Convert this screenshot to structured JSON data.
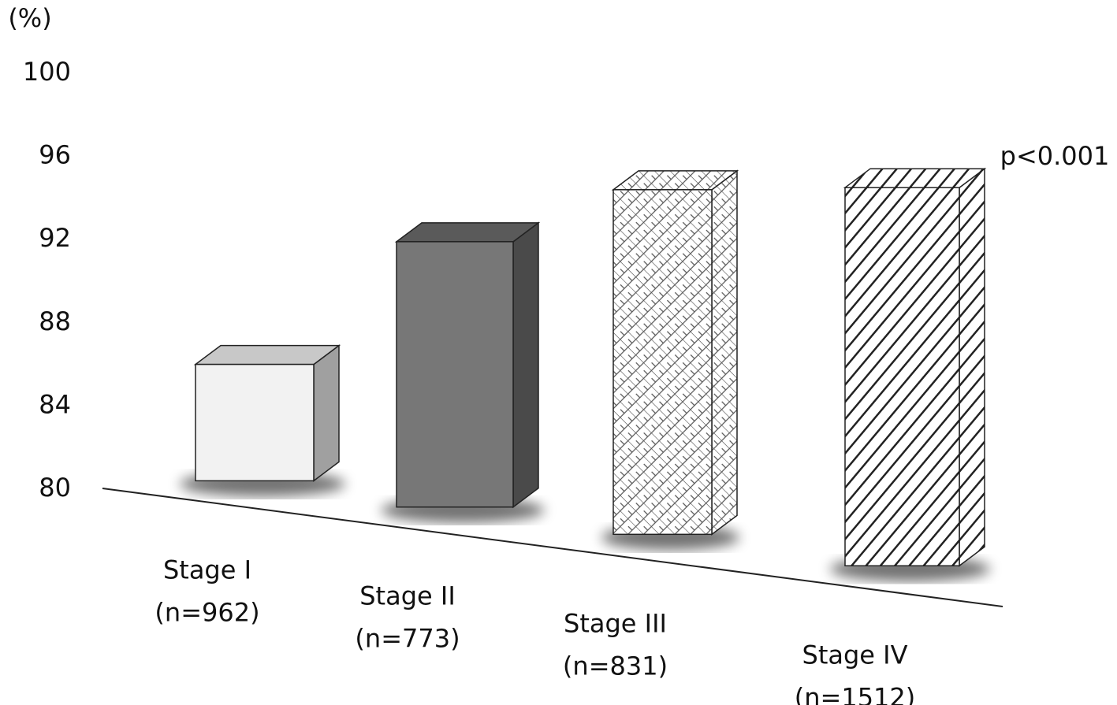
{
  "chart_data": {
    "type": "bar3d",
    "y_unit": "(%)",
    "annotation": "p<0.001",
    "categories": [
      "Stage I",
      "Stage II",
      "Stage III",
      "Stage IV"
    ],
    "sample_sizes": [
      "(n=962)",
      "(n=773)",
      "(n=831)",
      "(n=1512)"
    ],
    "values": [
      86.0,
      91.9,
      94.4,
      94.5
    ],
    "colors": [
      "#f2f2f2",
      "#777777",
      "#ffffff",
      "#ffffff"
    ],
    "ylim": [
      80,
      100
    ],
    "yticks": [
      80,
      84,
      88,
      92,
      96,
      100
    ]
  }
}
